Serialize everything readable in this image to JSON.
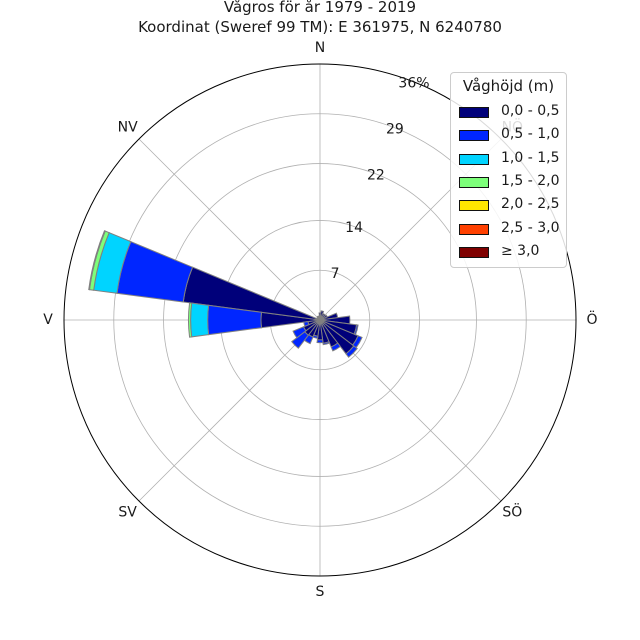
{
  "figure": {
    "title_line1": "Vågros för år 1979 - 2019",
    "title_line2": "Koordinat (Sweref 99 TM): E 361975, N 6240780"
  },
  "colors": {
    "0,0 - 0,5": "#00007a",
    "0,5 - 1,0": "#0026ff",
    "1,0 - 1,5": "#00d4ff",
    "1,5 - 2,0": "#7dff7a",
    "2,0 - 2,5": "#ffe600",
    "2,5 - 3,0": "#ff4000",
    "≥ 3,0": "#7f0000",
    "grid": "#b0b0b0",
    "bar_edge": "#808080"
  },
  "chart_data": {
    "type": "bar",
    "subtype": "polar-stacked-wind-rose",
    "title": "Vågros för år 1979 - 2019",
    "subtitle": "Koordinat (Sweref 99 TM): E 361975, N 6240780",
    "direction_labels": [
      "N",
      "NV",
      "V",
      "SV",
      "S",
      "SÖ",
      "Ö",
      "NÖ"
    ],
    "direction_label_angles_deg": [
      0,
      315,
      270,
      225,
      180,
      135,
      90,
      45
    ],
    "radial_ticks": [
      7,
      14,
      22,
      29,
      36
    ],
    "radial_tick_labels": [
      "7",
      "14",
      "22",
      "29",
      "36%"
    ],
    "rmax": 36,
    "sector_width_deg": 15,
    "legend_title": "Våghöjd (m)",
    "legend_placement": "top-right",
    "legend": [
      "0,0 - 0,5",
      "0,5 - 1,0",
      "1,0 - 1,5",
      "1,5 - 2,0",
      "2,0 - 2,5",
      "2,5 - 3,0",
      "≥ 3,0"
    ],
    "directions_deg": [
      0,
      15,
      30,
      45,
      60,
      75,
      90,
      105,
      120,
      135,
      150,
      165,
      180,
      195,
      210,
      225,
      240,
      255,
      270,
      285,
      300,
      315,
      330,
      345
    ],
    "series": [
      {
        "name": "0,0 - 0,5",
        "values": [
          1.0,
          1.3,
          1.0,
          1.0,
          1.1,
          2.5,
          4.2,
          5.2,
          5.8,
          6.0,
          4.1,
          3.3,
          2.8,
          2.3,
          2.6,
          2.7,
          2.5,
          1.7,
          8.3,
          19.4,
          0.4,
          0.5,
          0.6,
          0.5
        ]
      },
      {
        "name": "0,5 - 1,0",
        "values": [
          0,
          0,
          0,
          0,
          0,
          0,
          0,
          0.2,
          0.6,
          0.6,
          0.6,
          0.2,
          0.4,
          0.3,
          1.0,
          2.3,
          1.6,
          0.6,
          7.5,
          9.4,
          0,
          0,
          0,
          0
        ]
      },
      {
        "name": "1,0 - 1,5",
        "values": [
          0,
          0,
          0,
          0,
          0,
          0,
          0,
          0,
          0,
          0,
          0,
          0,
          0,
          0,
          0,
          0,
          0,
          0,
          2.4,
          3.3,
          0,
          0,
          0,
          0
        ]
      },
      {
        "name": "1,5 - 2,0",
        "values": [
          0,
          0,
          0,
          0,
          0,
          0,
          0,
          0,
          0,
          0,
          0,
          0,
          0,
          0,
          0,
          0,
          0,
          0,
          0.3,
          0.6,
          0,
          0,
          0,
          0
        ]
      },
      {
        "name": "2,0 - 2,5",
        "values": [
          0,
          0,
          0,
          0,
          0,
          0,
          0,
          0,
          0,
          0,
          0,
          0,
          0,
          0,
          0,
          0,
          0,
          0,
          0,
          0.1,
          0,
          0,
          0,
          0
        ]
      },
      {
        "name": "2,5 - 3,0",
        "values": [
          0,
          0,
          0,
          0,
          0,
          0,
          0,
          0,
          0,
          0,
          0,
          0,
          0,
          0,
          0,
          0,
          0,
          0,
          0,
          0,
          0,
          0,
          0,
          0
        ]
      },
      {
        "name": "≥ 3,0",
        "values": [
          0,
          0,
          0,
          0,
          0,
          0,
          0,
          0,
          0,
          0,
          0,
          0,
          0,
          0,
          0,
          0,
          0,
          0,
          0,
          0,
          0,
          0,
          0,
          0
        ]
      }
    ]
  }
}
